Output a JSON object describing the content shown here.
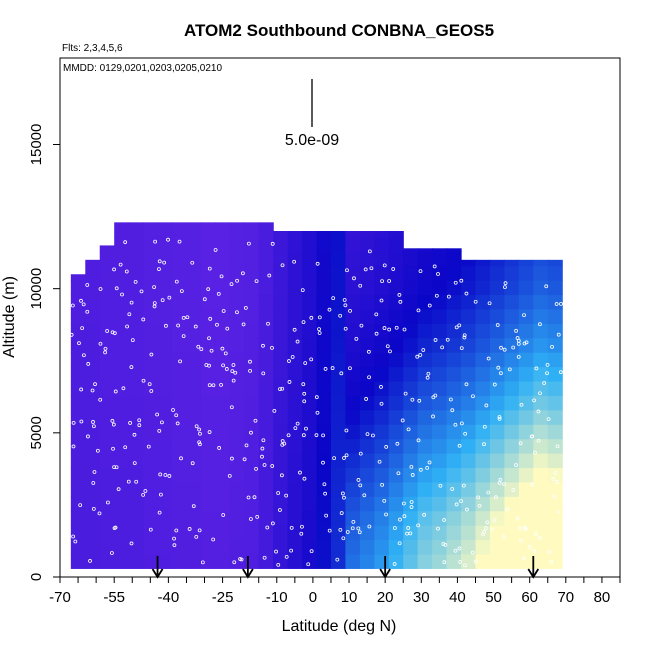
{
  "chart_data": {
    "type": "heatmap",
    "title": "ATOM2 Southbound CONBNA_GEOS5",
    "flights_note": "Flts: 2,3,4,5,6",
    "dates_note": "MMDD: 0129,0201,0203,0205,0210",
    "xlabel": "Latitude (deg N)",
    "ylabel": "Altitude (m)",
    "xlim": [
      -70,
      85
    ],
    "ylim": [
      0,
      18000
    ],
    "xticks": [
      -70,
      -55,
      -40,
      -25,
      -10,
      0,
      10,
      20,
      30,
      40,
      50,
      60,
      70,
      80
    ],
    "yticks": [
      0,
      5000,
      10000,
      15000
    ],
    "scale_bar_label": "5.0e-09",
    "arrow_latitudes": [
      -43,
      -18,
      20,
      61
    ],
    "grid": false,
    "colors": {
      "low": "#7f2ef0",
      "mid": "#0a06c8",
      "high": "#2fb0f5",
      "max": "#fffbc0",
      "points": "#ffffff"
    },
    "columns": [
      {
        "lat": -65,
        "top": 10500,
        "value": 0.2
      },
      {
        "lat": -61,
        "top": 11000,
        "value": 0.2
      },
      {
        "lat": -57,
        "top": 11500,
        "value": 0.19
      },
      {
        "lat": -53,
        "top": 12300,
        "value": 0.19
      },
      {
        "lat": -49,
        "top": 12300,
        "value": 0.19
      },
      {
        "lat": -45,
        "top": 12300,
        "value": 0.18
      },
      {
        "lat": -41,
        "top": 12300,
        "value": 0.18
      },
      {
        "lat": -37,
        "top": 12300,
        "value": 0.17
      },
      {
        "lat": -33,
        "top": 12300,
        "value": 0.17
      },
      {
        "lat": -29,
        "top": 12300,
        "value": 0.16
      },
      {
        "lat": -25,
        "top": 12300,
        "value": 0.16
      },
      {
        "lat": -21,
        "top": 12300,
        "value": 0.17
      },
      {
        "lat": -17,
        "top": 12300,
        "value": 0.18
      },
      {
        "lat": -13,
        "top": 12300,
        "value": 0.22
      },
      {
        "lat": -9,
        "top": 12000,
        "value": 0.28
      },
      {
        "lat": -5,
        "top": 12000,
        "value": 0.33
      },
      {
        "lat": -1,
        "top": 12000,
        "value": 0.38
      },
      {
        "lat": 3,
        "top": 12000,
        "value": 0.45
      },
      {
        "lat": 7,
        "top": 12000,
        "value": 0.5
      },
      {
        "lat": 11,
        "top": 12000,
        "value": 0.52
      },
      {
        "lat": 15,
        "top": 12000,
        "value": 0.55
      },
      {
        "lat": 19,
        "top": 12000,
        "value": 0.58
      },
      {
        "lat": 23,
        "top": 12000,
        "value": 0.62
      },
      {
        "lat": 27,
        "top": 11400,
        "value": 0.66
      },
      {
        "lat": 31,
        "top": 11400,
        "value": 0.7
      },
      {
        "lat": 35,
        "top": 11400,
        "value": 0.72
      },
      {
        "lat": 39,
        "top": 11400,
        "value": 0.75
      },
      {
        "lat": 43,
        "top": 11000,
        "value": 0.78
      },
      {
        "lat": 47,
        "top": 11000,
        "value": 0.82
      },
      {
        "lat": 51,
        "top": 11000,
        "value": 0.86
      },
      {
        "lat": 55,
        "top": 11000,
        "value": 0.9
      },
      {
        "lat": 59,
        "top": 11000,
        "value": 0.94
      },
      {
        "lat": 63,
        "top": 11000,
        "value": 0.98
      },
      {
        "lat": 67,
        "top": 11000,
        "value": 0.96
      }
    ],
    "altitude_profile": [
      {
        "alt": 0,
        "factor": 1.25
      },
      {
        "alt": 2000,
        "factor": 1.15
      },
      {
        "alt": 4000,
        "factor": 1.0
      },
      {
        "alt": 6000,
        "factor": 0.85
      },
      {
        "alt": 8000,
        "factor": 0.72
      },
      {
        "alt": 10000,
        "factor": 0.62
      },
      {
        "alt": 12500,
        "factor": 0.55
      }
    ]
  }
}
